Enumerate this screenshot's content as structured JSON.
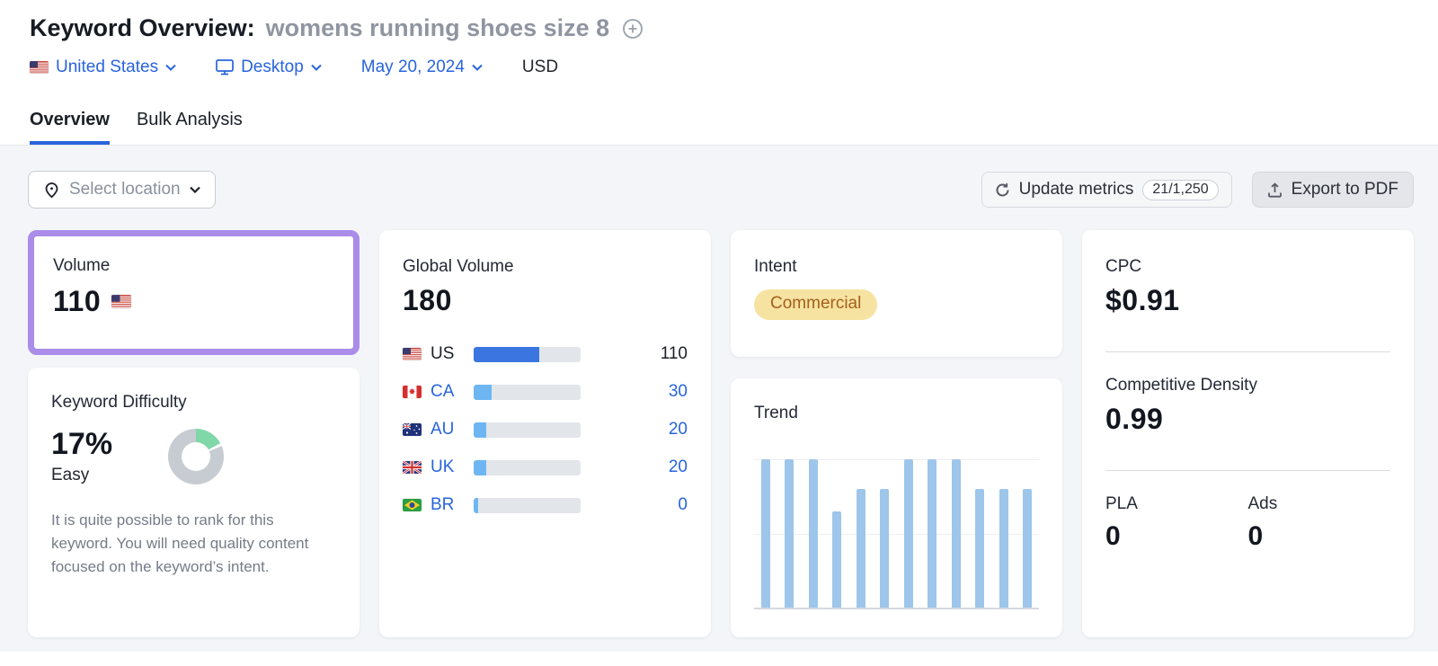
{
  "header": {
    "title": "Keyword Overview:",
    "keyword": "womens running shoes size 8",
    "filters": {
      "country": "United States",
      "device": "Desktop",
      "date": "May 20, 2024",
      "currency": "USD"
    }
  },
  "tabs": {
    "overview": "Overview",
    "bulk_analysis": "Bulk Analysis"
  },
  "toolbar": {
    "select_location": "Select location",
    "update_metrics": "Update metrics",
    "update_quota": "21/1,250",
    "export_pdf": "Export to PDF"
  },
  "cards": {
    "volume": {
      "title": "Volume",
      "value": "110"
    },
    "keyword_difficulty": {
      "title": "Keyword Difficulty",
      "percent": "17%",
      "percent_value": 17,
      "level": "Easy",
      "description": "It is quite possible to rank for this keyword. You will need quality content focused on the keyword’s intent."
    },
    "global_volume": {
      "title": "Global Volume",
      "value": "180",
      "rows": [
        {
          "code": "US",
          "value": "110",
          "bar_pct": 61
        },
        {
          "code": "CA",
          "value": "30",
          "bar_pct": 17
        },
        {
          "code": "AU",
          "value": "20",
          "bar_pct": 12
        },
        {
          "code": "UK",
          "value": "20",
          "bar_pct": 12
        },
        {
          "code": "BR",
          "value": "0",
          "bar_pct": 4
        }
      ]
    },
    "intent": {
      "title": "Intent",
      "badge": "Commercial"
    },
    "trend": {
      "title": "Trend"
    },
    "cpc": {
      "title": "CPC",
      "value": "$0.91"
    },
    "competitive_density": {
      "title": "Competitive Density",
      "value": "0.99"
    },
    "pla": {
      "label": "PLA",
      "value": "0"
    },
    "ads": {
      "label": "Ads",
      "value": "0"
    }
  },
  "chart_data": [
    {
      "type": "bar",
      "title": "Trend",
      "values": [
        100,
        100,
        100,
        65,
        80,
        80,
        100,
        100,
        100,
        80,
        80,
        80
      ],
      "ylim": [
        0,
        100
      ],
      "xlabel": "",
      "ylabel": "",
      "tick_labels_visible": false,
      "grid": true,
      "bar_color": "#9dc6ea"
    },
    {
      "type": "pie",
      "title": "Keyword Difficulty donut",
      "labels": [
        "difficulty",
        "remaining"
      ],
      "values": [
        17,
        83
      ],
      "colors": [
        "#80d7a8",
        "#c7cbd2"
      ]
    }
  ],
  "colors": {
    "highlight_purple": "#aa8ce9",
    "link_blue": "#2864dc",
    "bar_blue_active": "#3b76e0",
    "bar_blue_light": "#6eb6f2",
    "trend_bar": "#9dc6ea",
    "kd_green": "#80d7a8",
    "kd_gray": "#c7cbd2",
    "intent_bg": "#f7e3a1",
    "intent_text": "#a5601c",
    "background": "#f4f5f9"
  }
}
